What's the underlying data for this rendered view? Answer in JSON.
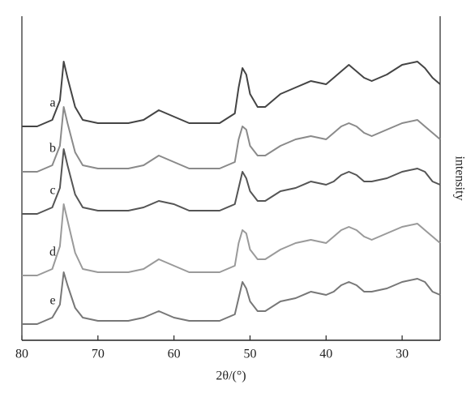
{
  "chart_data": {
    "type": "line",
    "x_label": "2θ/(°)",
    "y_label": "intensity",
    "x": [
      80,
      78,
      76,
      75,
      74.5,
      74,
      73,
      72,
      70,
      68,
      66,
      64,
      62,
      60,
      58,
      56,
      54,
      52,
      51.5,
      51,
      50.5,
      50,
      49,
      48,
      46,
      44,
      42,
      40,
      39,
      38,
      37,
      36,
      35,
      34,
      32,
      30,
      28,
      27,
      26,
      25
    ],
    "series": [
      {
        "name": "a",
        "color": "#444444",
        "values": [
          66,
          66,
          68,
          74,
          86,
          81,
          72,
          68,
          67,
          67,
          67,
          68,
          71,
          69,
          67,
          67,
          67,
          70,
          78,
          84,
          82,
          76,
          72,
          72,
          76,
          78,
          80,
          79,
          81,
          83,
          85,
          83,
          81,
          80,
          82,
          85,
          86,
          84,
          81,
          79
        ]
      },
      {
        "name": "b",
        "color": "#8a8a8a",
        "values": [
          52,
          52,
          54,
          60,
          72,
          67,
          58,
          54,
          53,
          53,
          53,
          54,
          57,
          55,
          53,
          53,
          53,
          55,
          62,
          66,
          65,
          60,
          57,
          57,
          60,
          62,
          63,
          62,
          64,
          66,
          67,
          66,
          64,
          63,
          65,
          67,
          68,
          66,
          64,
          62
        ]
      },
      {
        "name": "c",
        "color": "#555555",
        "values": [
          39,
          39,
          41,
          47,
          59,
          54,
          45,
          41,
          40,
          40,
          40,
          41,
          43,
          42,
          40,
          40,
          40,
          42,
          47,
          52,
          50,
          46,
          43,
          43,
          46,
          47,
          49,
          48,
          49,
          51,
          52,
          51,
          49,
          49,
          50,
          52,
          53,
          52,
          49,
          48
        ]
      },
      {
        "name": "d",
        "color": "#9a9a9a",
        "values": [
          20,
          20,
          22,
          29,
          42,
          37,
          27,
          22,
          21,
          21,
          21,
          22,
          25,
          23,
          21,
          21,
          21,
          23,
          30,
          34,
          33,
          28,
          25,
          25,
          28,
          30,
          31,
          30,
          32,
          34,
          35,
          34,
          32,
          31,
          33,
          35,
          36,
          34,
          32,
          30
        ]
      },
      {
        "name": "e",
        "color": "#777777",
        "values": [
          5,
          5,
          7,
          11,
          21,
          17,
          10,
          7,
          6,
          6,
          6,
          7,
          9,
          7,
          6,
          6,
          6,
          8,
          13,
          18,
          16,
          12,
          9,
          9,
          12,
          13,
          15,
          14,
          15,
          17,
          18,
          17,
          15,
          15,
          16,
          18,
          19,
          18,
          15,
          14
        ]
      }
    ],
    "xlim": [
      80,
      25
    ],
    "xticks": [
      80,
      70,
      60,
      50,
      40,
      30
    ],
    "ylim": [
      0,
      100
    ],
    "grid": false
  }
}
